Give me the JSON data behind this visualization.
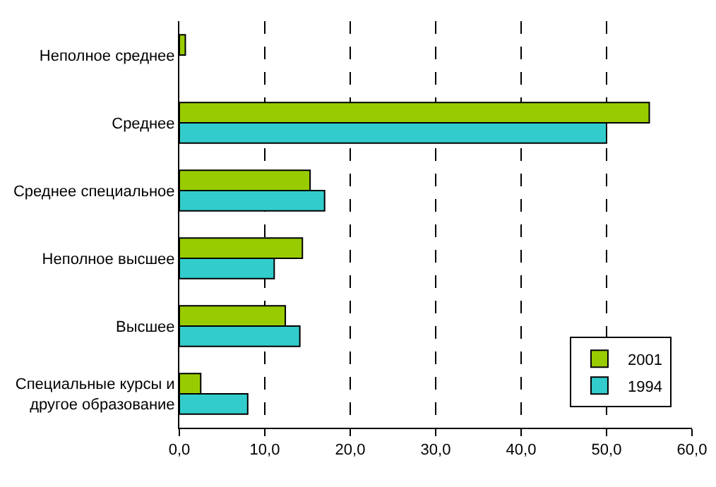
{
  "chart_data": {
    "type": "bar",
    "orientation": "horizontal",
    "categories": [
      "Неполное среднее",
      "Среднее",
      "Среднее специальное",
      "Неполное высшее",
      "Высшее",
      "Специальные курсы и другое образование"
    ],
    "series": [
      {
        "name": "2001",
        "color": "#99cc00",
        "values": [
          0.7,
          55.0,
          15.3,
          14.4,
          12.4,
          2.5
        ]
      },
      {
        "name": "1994",
        "color": "#33cccc",
        "values": [
          null,
          50.0,
          17.0,
          11.1,
          14.1,
          8.0
        ]
      }
    ],
    "xlim": [
      0,
      60
    ],
    "xticks": [
      {
        "value": 0,
        "label": "0,0"
      },
      {
        "value": 10,
        "label": "10,0"
      },
      {
        "value": 20,
        "label": "20,0"
      },
      {
        "value": 30,
        "label": "30,0"
      },
      {
        "value": 40,
        "label": "40,0"
      },
      {
        "value": 50,
        "label": "50,0"
      },
      {
        "value": 60,
        "label": "60,0"
      }
    ],
    "grid": "x",
    "legend": "bottom right"
  }
}
